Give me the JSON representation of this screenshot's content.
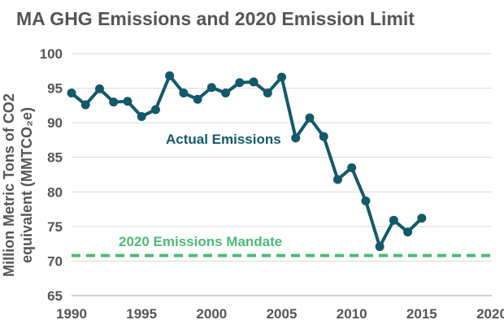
{
  "chart_data": {
    "type": "line",
    "title": "MA GHG Emissions and 2020 Emission Limit",
    "xlabel": "",
    "ylabel_line1": "Million Metric Tons of CO2",
    "ylabel_line2": "equivalent (MMTCO₂e)",
    "xlim": [
      1990,
      2020
    ],
    "ylim": [
      65,
      100
    ],
    "xticks": [
      1990,
      1995,
      2000,
      2005,
      2010,
      2015,
      2020
    ],
    "yticks": [
      65,
      70,
      75,
      80,
      85,
      90,
      95,
      100
    ],
    "grid": "horizontal",
    "series": [
      {
        "name": "Actual Emissions",
        "color": "#14596b",
        "x": [
          1990,
          1991,
          1992,
          1993,
          1994,
          1995,
          1996,
          1997,
          1998,
          1999,
          2000,
          2001,
          2002,
          2003,
          2004,
          2005,
          2006,
          2007,
          2008,
          2009,
          2010,
          2011,
          2012,
          2013,
          2014,
          2015
        ],
        "values": [
          94.3,
          92.6,
          94.9,
          93.0,
          93.1,
          90.9,
          91.9,
          96.8,
          94.3,
          93.4,
          95.1,
          94.3,
          95.8,
          95.9,
          94.3,
          96.6,
          87.8,
          90.7,
          88.0,
          81.8,
          83.5,
          78.7,
          72.1,
          75.9,
          74.2,
          76.2
        ]
      }
    ],
    "reference_line": {
      "name": "2020 Emissions Mandate",
      "value": 70.8,
      "color": "#4dbb78"
    },
    "annotations": [
      {
        "text": "Actual Emissions",
        "series": "Actual Emissions"
      },
      {
        "text": "2020 Emissions Mandate",
        "series": "reference"
      }
    ]
  }
}
